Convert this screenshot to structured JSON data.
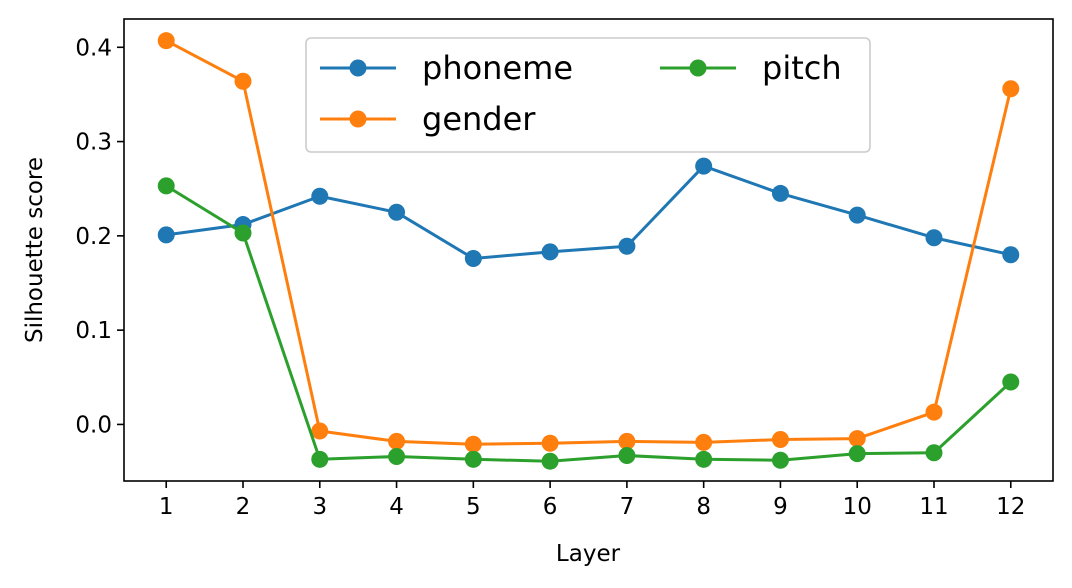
{
  "chart_data": {
    "type": "line",
    "title": "",
    "xlabel": "Layer",
    "ylabel": "Silhouette score",
    "x": [
      1,
      2,
      3,
      4,
      5,
      6,
      7,
      8,
      9,
      10,
      11,
      12
    ],
    "xticks": [
      "1",
      "2",
      "3",
      "4",
      "5",
      "6",
      "7",
      "8",
      "9",
      "10",
      "11",
      "12"
    ],
    "yticks": [
      "0.0",
      "0.1",
      "0.2",
      "0.3",
      "0.4"
    ],
    "xlim": [
      0.45,
      12.55
    ],
    "ylim": [
      -0.06,
      0.43
    ],
    "grid": false,
    "legend_position": "top-center",
    "series": [
      {
        "name": "phoneme",
        "color": "#1f77b4",
        "values": [
          0.201,
          0.212,
          0.242,
          0.225,
          0.176,
          0.183,
          0.189,
          0.274,
          0.245,
          0.222,
          0.198,
          0.18
        ]
      },
      {
        "name": "gender",
        "color": "#ff7f0e",
        "values": [
          0.407,
          0.364,
          -0.007,
          -0.018,
          -0.021,
          -0.02,
          -0.018,
          -0.019,
          -0.016,
          -0.015,
          0.013,
          0.356
        ]
      },
      {
        "name": "pitch",
        "color": "#2ca02c",
        "values": [
          0.253,
          0.203,
          -0.037,
          -0.034,
          -0.037,
          -0.039,
          -0.033,
          -0.037,
          -0.038,
          -0.031,
          -0.03,
          0.045
        ]
      }
    ]
  }
}
